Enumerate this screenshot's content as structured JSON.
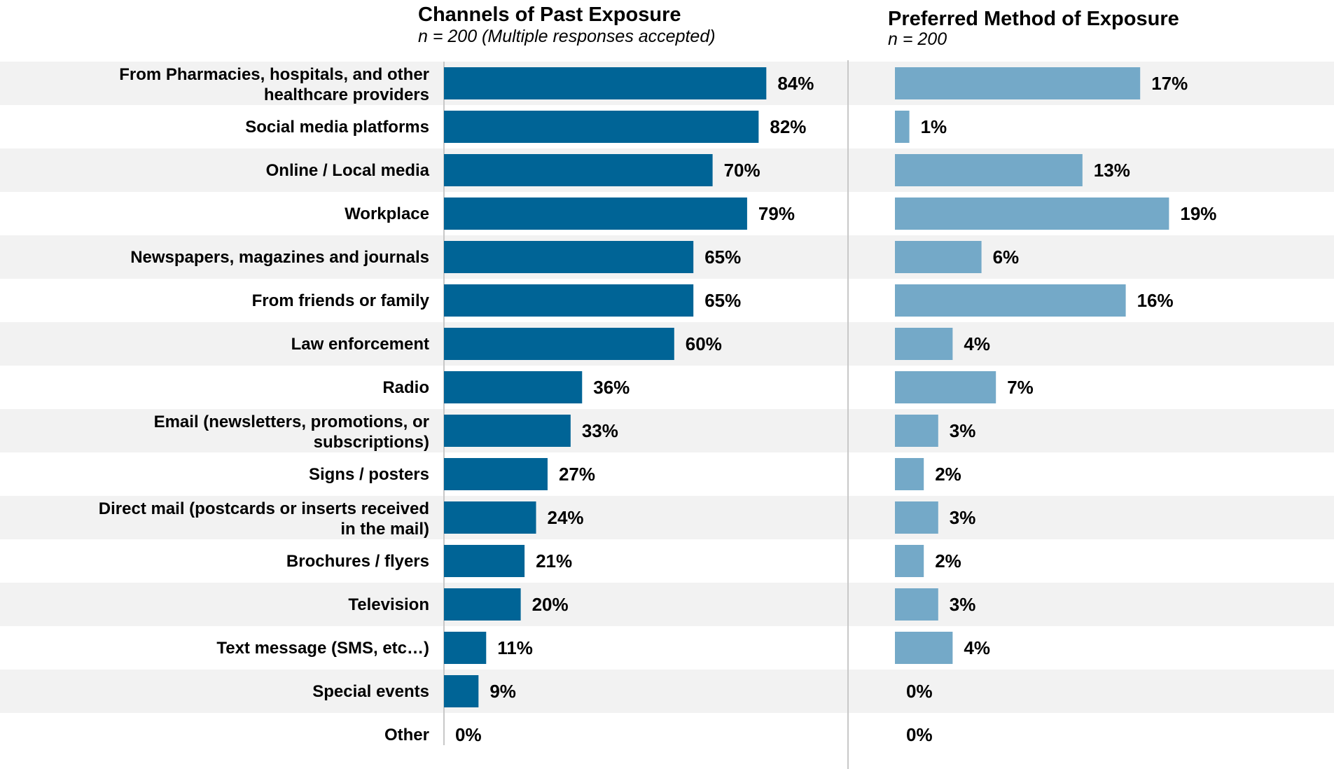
{
  "chart_data": [
    {
      "type": "bar",
      "orientation": "horizontal",
      "title": "Channels of Past Exposure",
      "subtitle": "n = 200 (Multiple responses accepted)",
      "categories": [
        "From Pharmacies, hospitals, and other healthcare providers",
        "Social media platforms",
        "Online / Local media",
        "Workplace",
        "Newspapers, magazines and journals",
        "From friends or family",
        "Law enforcement",
        "Radio",
        "Email (newsletters, promotions, or subscriptions)",
        "Signs / posters",
        "Direct mail (postcards or inserts received in the mail)",
        "Brochures / flyers",
        "Television",
        "Text message (SMS, etc…)",
        "Special events",
        "Other"
      ],
      "values": [
        84,
        82,
        70,
        79,
        65,
        65,
        60,
        36,
        33,
        27,
        24,
        21,
        20,
        11,
        9,
        0
      ],
      "value_labels": [
        "84%",
        "82%",
        "70%",
        "79%",
        "65%",
        "65%",
        "60%",
        "36%",
        "33%",
        "27%",
        "24%",
        "21%",
        "20%",
        "11%",
        "9%",
        "0%"
      ],
      "unit": "%",
      "xlim": [
        0,
        100
      ],
      "color": "#006496",
      "grid": false,
      "legend": "none"
    },
    {
      "type": "bar",
      "orientation": "horizontal",
      "title": "Preferred Method of Exposure",
      "subtitle": "n = 200",
      "categories": [
        "From Pharmacies, hospitals, and other healthcare providers",
        "Social media platforms",
        "Online / Local media",
        "Workplace",
        "Newspapers, magazines and journals",
        "From friends or family",
        "Law enforcement",
        "Radio",
        "Email (newsletters, promotions, or subscriptions)",
        "Signs / posters",
        "Direct mail (postcards or inserts received in the mail)",
        "Brochures / flyers",
        "Television",
        "Text message (SMS, etc…)",
        "Special events",
        "Other"
      ],
      "values": [
        17,
        1,
        13,
        19,
        6,
        16,
        4,
        7,
        3,
        2,
        3,
        2,
        3,
        4,
        0,
        0
      ],
      "value_labels": [
        "17%",
        "1%",
        "13%",
        "19%",
        "6%",
        "16%",
        "4%",
        "7%",
        "3%",
        "2%",
        "3%",
        "2%",
        "3%",
        "4%",
        "0%",
        "0%"
      ],
      "unit": "%",
      "xlim": [
        0,
        20
      ],
      "color": "#74a9c8",
      "grid": false,
      "legend": "none"
    }
  ],
  "colors": {
    "band": "#f2f2f2",
    "divider": "#c8c8c8"
  }
}
